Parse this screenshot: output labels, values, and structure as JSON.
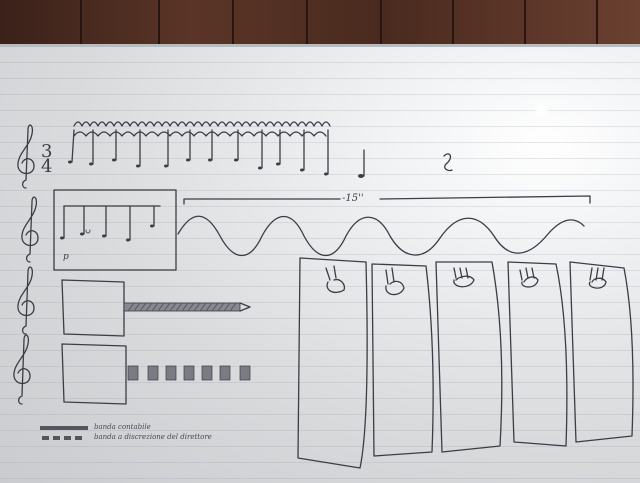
{
  "score": {
    "time_signature": {
      "top": "3",
      "bottom": "4"
    },
    "duration": "-15''",
    "dynamic": "p"
  },
  "legend": [
    {
      "symbol": "solid-band",
      "label": "banda contabile"
    },
    {
      "symbol": "dashed-band",
      "label": "banda a discrezione del direttore"
    }
  ],
  "colors": {
    "ink": "#3d3d45",
    "board": "#e4e6e8",
    "wall": "#4a3026"
  },
  "icons": [
    "treble-clef-icon",
    "hand-icon"
  ]
}
